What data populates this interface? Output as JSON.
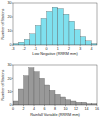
{
  "chart_data": [
    {
      "type": "histogram",
      "x_label": "Low Negative (RRRM mm)",
      "y_label": "Number of Stations",
      "bins": [
        -3,
        -2.5,
        -2,
        -1.5,
        -1,
        -0.5,
        0,
        0.5,
        1,
        1.5,
        2,
        2.5,
        3,
        3.5,
        4,
        4.5
      ],
      "values": [
        1,
        2,
        4,
        8,
        14,
        19,
        24,
        27,
        26,
        22,
        17,
        11,
        6,
        3,
        1
      ],
      "color": "#7fe0ee",
      "xlim": [
        -3,
        4.5
      ],
      "xticks": [
        -3,
        -2,
        -1,
        0,
        1,
        2,
        3,
        4
      ],
      "ylim": [
        0,
        30
      ],
      "yticks": [
        0,
        10,
        20,
        30
      ]
    },
    {
      "type": "histogram",
      "x_label": "Rainfall Variable (RRRM mm)",
      "y_label": "Number of Stations",
      "bins": [
        0,
        1,
        2,
        3,
        4,
        5,
        6,
        7,
        8,
        9,
        10,
        11,
        12,
        13,
        14,
        15,
        16
      ],
      "values": [
        3,
        12,
        22,
        28,
        25,
        20,
        15,
        11,
        8,
        6,
        4,
        3,
        2,
        2,
        1,
        1
      ],
      "color": "#999999",
      "xlim": [
        0,
        16
      ],
      "xticks": [
        0,
        2,
        4,
        6,
        8,
        10,
        12,
        14,
        16
      ],
      "ylim": [
        0,
        30
      ],
      "yticks": [
        0,
        10,
        20,
        30
      ]
    }
  ]
}
